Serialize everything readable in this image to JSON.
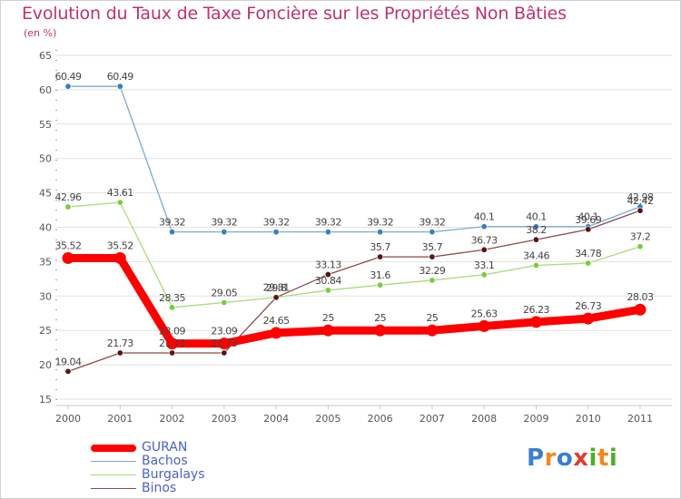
{
  "title": "Evolution du Taux de Taxe Foncière sur les Propriétés Non Bâties",
  "subtitle": "(en %)",
  "logo": {
    "text": "Proxiti",
    "letters": [
      "P",
      "r",
      "o",
      "x",
      "i",
      "t",
      "i"
    ],
    "colors": [
      "#3a7fd1",
      "#f08a1c",
      "#3a7fd1",
      "#e23c2c",
      "#4caf2c",
      "#f08a1c",
      "#4caf2c"
    ]
  },
  "chart_data": {
    "type": "line",
    "title": "Evolution du Taux de Taxe Foncière sur les Propriétés Non Bâties",
    "ylabel": "(en %)",
    "xlabel": "",
    "ylim": [
      15,
      65
    ],
    "yticks": [
      15,
      20,
      25,
      30,
      35,
      40,
      45,
      50,
      55,
      60,
      65
    ],
    "categories": [
      "2000",
      "2001",
      "2002",
      "2003",
      "2004",
      "2005",
      "2006",
      "2007",
      "2008",
      "2009",
      "2010",
      "2011"
    ],
    "series": [
      {
        "name": "GURAN",
        "color": "#ff0000",
        "dot": "#ff0000",
        "values": [
          35.52,
          35.52,
          23.09,
          23.09,
          24.65,
          25,
          25,
          25,
          25.63,
          26.23,
          26.73,
          28.03
        ],
        "labels": [
          "35.52",
          "35.52",
          "23.09",
          "23.09",
          "24.65",
          "25",
          "25",
          "25",
          "25.63",
          "26.23",
          "26.73",
          "28.03"
        ]
      },
      {
        "name": "Bachos",
        "color": "#7aaad0",
        "dot": "#3a7fc0",
        "values": [
          60.49,
          60.49,
          39.32,
          39.32,
          39.32,
          39.32,
          39.32,
          39.32,
          40.1,
          40.1,
          40.1,
          42.98
        ],
        "labels": [
          "60.49",
          "60.49",
          "39.32",
          "39.32",
          "39.32",
          "39.32",
          "39.32",
          "39.32",
          "40.1",
          "40.1",
          "40.1",
          "42.98"
        ]
      },
      {
        "name": "Burgalays",
        "color": "#a8dc7a",
        "dot": "#7ccc3c",
        "values": [
          42.96,
          43.61,
          28.35,
          29.05,
          29.81,
          30.84,
          31.6,
          32.29,
          33.1,
          34.46,
          34.78,
          37.2
        ],
        "labels": [
          "42.96",
          "43.61",
          "28.35",
          "29.05",
          "29.81",
          "30.84",
          "31.6",
          "32.29",
          "33.1",
          "34.46",
          "34.78",
          "37.2"
        ]
      },
      {
        "name": "Binos",
        "color": "#8a4a4a",
        "dot": "#5a1414",
        "values": [
          19.04,
          21.73,
          21.73,
          21.73,
          29.8,
          33.13,
          35.7,
          35.7,
          36.73,
          38.2,
          39.69,
          42.42
        ],
        "labels": [
          "19.04",
          "21.73",
          "21.73",
          "21.73",
          "29.8",
          "33.13",
          "35.7",
          "35.7",
          "36.73",
          "38.2",
          "39.69",
          "42.42"
        ]
      }
    ]
  }
}
